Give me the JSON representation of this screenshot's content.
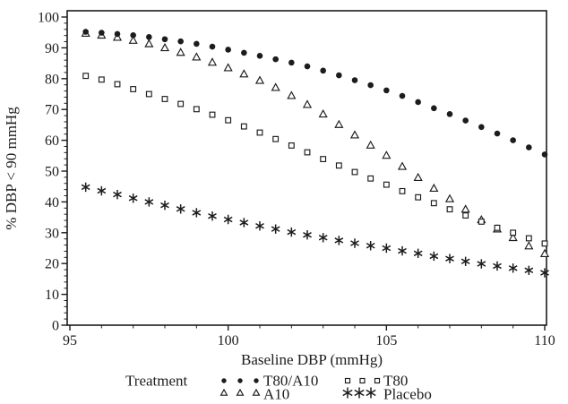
{
  "colors": {
    "ink": "#1c1c1c",
    "background": "#ffffff"
  },
  "chart_data": {
    "type": "scatter",
    "title": "",
    "xlabel": "Baseline DBP (mmHg)",
    "ylabel": "% DBP < 90 mmHg",
    "xlim": [
      95,
      110
    ],
    "ylim": [
      0,
      100
    ],
    "xticks": [
      95,
      100,
      105,
      110
    ],
    "yticks": [
      0,
      10,
      20,
      30,
      40,
      50,
      60,
      70,
      80,
      90,
      100
    ],
    "x_minor_step": 1,
    "y_minor_step": 2,
    "grid": false,
    "x": [
      95.5,
      96,
      96.5,
      97,
      97.5,
      98,
      98.5,
      99,
      99.5,
      100,
      100.5,
      101,
      101.5,
      102,
      102.5,
      103,
      103.5,
      104,
      104.5,
      105,
      105.5,
      106,
      106.5,
      107,
      107.5,
      108,
      108.5,
      109,
      109.5,
      110
    ],
    "series": [
      {
        "name": "T80/A10",
        "marker": "filled-circle",
        "values": [
          95.2,
          94.9,
          94.5,
          94.1,
          93.5,
          92.8,
          92.1,
          91.3,
          90.4,
          89.4,
          88.4,
          87.4,
          86.3,
          85.2,
          84,
          82.6,
          81.1,
          79.5,
          77.9,
          76.2,
          74.4,
          72.4,
          70.4,
          68.5,
          66.4,
          64.3,
          62.2,
          60,
          57.7,
          55.4
        ]
      },
      {
        "name": "A10",
        "marker": "open-triangle",
        "values": [
          94.7,
          94.1,
          93.4,
          92.4,
          91.3,
          90,
          88.5,
          87,
          85.3,
          83.5,
          81.5,
          79.4,
          77.1,
          74.5,
          71.6,
          68.5,
          65.1,
          61.7,
          58.4,
          55.1,
          51.5,
          47.9,
          44.4,
          41,
          37.6,
          34.2,
          31.2,
          28.4,
          25.7,
          23.2
        ]
      },
      {
        "name": "T80",
        "marker": "open-square",
        "values": [
          80.9,
          79.7,
          78.2,
          76.6,
          75,
          73.4,
          71.8,
          70.1,
          68.3,
          66.5,
          64.5,
          62.5,
          60.4,
          58.3,
          56.1,
          53.9,
          51.8,
          49.7,
          47.6,
          45.6,
          43.5,
          41.5,
          39.6,
          37.6,
          35.6,
          33.6,
          31.6,
          30,
          28.2,
          26.5
        ]
      },
      {
        "name": "Placebo",
        "marker": "asterisk",
        "values": [
          44.8,
          43.6,
          42.4,
          41.2,
          40,
          38.9,
          37.7,
          36.5,
          35.4,
          34.3,
          33.3,
          32.2,
          31.2,
          30.2,
          29.3,
          28.4,
          27.5,
          26.6,
          25.8,
          25,
          24.1,
          23.3,
          22.4,
          21.6,
          20.7,
          19.9,
          19.2,
          18.5,
          17.8,
          17
        ]
      }
    ],
    "legend": {
      "title": "Treatment",
      "position": "bottom",
      "grid": [
        [
          0,
          2
        ],
        [
          1,
          3
        ]
      ]
    }
  }
}
